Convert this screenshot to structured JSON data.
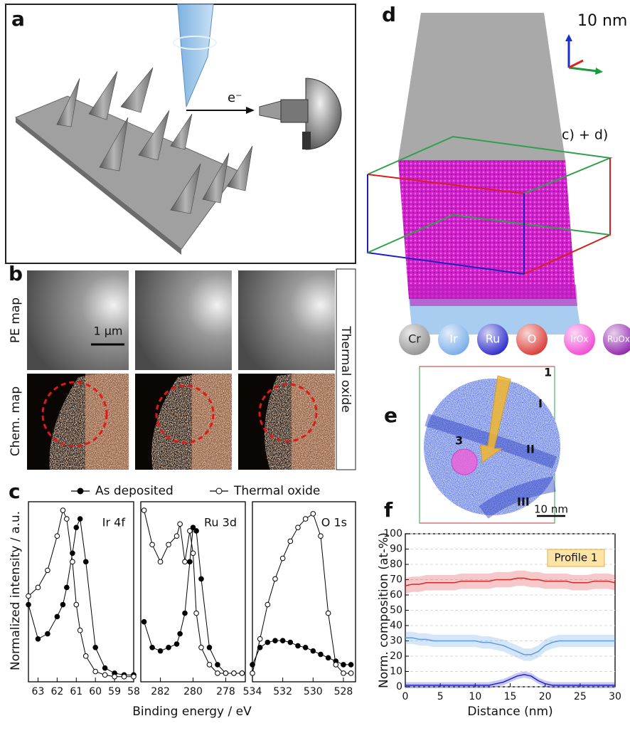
{
  "panel_labels": [
    "a",
    "b",
    "c",
    "d",
    "e",
    "f"
  ],
  "panel_a": {
    "electron_label": "e⁻"
  },
  "panel_b": {
    "row_labels": [
      "PE map",
      "Chem. map"
    ],
    "scale_bar": "1 µm",
    "side_label": "Thermal oxide"
  },
  "panel_c": {
    "legend": [
      {
        "label": "As deposited",
        "marker": "filled"
      },
      {
        "label": "Thermal oxide",
        "marker": "open"
      }
    ],
    "ylabel": "Normalized intensity / a.u.",
    "xlabel": "Binding energy / eV"
  },
  "panel_d": {
    "scale": "10 nm",
    "box_label": "c) + d)",
    "legend": [
      {
        "label": "Cr",
        "color": "#8c8c8c"
      },
      {
        "label": "Ir",
        "color": "#6fa8e8"
      },
      {
        "label": "Ru",
        "color": "#1f1fc8"
      },
      {
        "label": "O",
        "color": "#d8302a"
      },
      {
        "label": "IrOx",
        "color": "#f040d0"
      },
      {
        "label": "RuOx",
        "color": "#8a18a8"
      }
    ]
  },
  "panel_e": {
    "labels": [
      "1",
      "I",
      "II",
      "III",
      "3"
    ],
    "scale": "10 nm"
  },
  "chart_data": [
    {
      "type": "line",
      "label": "Ir 4f",
      "xlim": [
        63.5,
        58
      ],
      "xticks": [
        63,
        62,
        61,
        60,
        59,
        58
      ],
      "ylim": [
        0,
        1.05
      ],
      "x": [
        63.5,
        63,
        62.5,
        62,
        61.7,
        61.5,
        61.2,
        61,
        60.8,
        60.5,
        60,
        59.5,
        59,
        58.5,
        58
      ],
      "series": [
        {
          "marker": "filled",
          "color": "#000000",
          "values": [
            0.45,
            0.25,
            0.28,
            0.38,
            0.45,
            0.55,
            0.75,
            0.9,
            0.95,
            0.7,
            0.2,
            0.08,
            0.05,
            0.04,
            0.04
          ]
        },
        {
          "marker": "open",
          "color": "#000000",
          "values": [
            0.5,
            0.55,
            0.65,
            0.85,
            1.0,
            0.95,
            0.7,
            0.45,
            0.3,
            0.15,
            0.06,
            0.04,
            0.03,
            0.03,
            0.03
          ]
        }
      ]
    },
    {
      "type": "line",
      "label": "Ru 3d",
      "xlim": [
        283.2,
        276.8
      ],
      "xticks": [
        282,
        280,
        278
      ],
      "ylim": [
        0,
        1.05
      ],
      "x": [
        283,
        282.5,
        282,
        281.5,
        281,
        280.8,
        280.5,
        280.2,
        280,
        279.8,
        279.5,
        279,
        278.5,
        278,
        277.5,
        277
      ],
      "series": [
        {
          "marker": "filled",
          "color": "#000000",
          "values": [
            0.35,
            0.2,
            0.18,
            0.2,
            0.22,
            0.28,
            0.4,
            0.7,
            0.9,
            0.88,
            0.6,
            0.2,
            0.1,
            0.05,
            0.05,
            0.05
          ]
        },
        {
          "marker": "open",
          "color": "#000000",
          "values": [
            1.0,
            0.8,
            0.7,
            0.8,
            0.85,
            0.92,
            0.7,
            0.88,
            0.75,
            0.4,
            0.2,
            0.1,
            0.05,
            0.05,
            0.05,
            0.05
          ]
        }
      ]
    },
    {
      "type": "line",
      "label": "O 1s",
      "xlim": [
        534,
        527.2
      ],
      "xticks": [
        534,
        532,
        530,
        528
      ],
      "ylim": [
        0,
        1.05
      ],
      "x": [
        534,
        533.5,
        533,
        532.5,
        532,
        531.5,
        531,
        530.5,
        530,
        529.5,
        529,
        528.5,
        528,
        527.5
      ],
      "series": [
        {
          "marker": "filled",
          "color": "#000000",
          "values": [
            0.1,
            0.2,
            0.23,
            0.24,
            0.24,
            0.23,
            0.21,
            0.2,
            0.18,
            0.16,
            0.14,
            0.12,
            0.1,
            0.1
          ]
        },
        {
          "marker": "open",
          "color": "#000000",
          "values": [
            0.05,
            0.25,
            0.45,
            0.6,
            0.72,
            0.82,
            0.9,
            0.95,
            0.98,
            0.85,
            0.4,
            0.1,
            0.05,
            0.05
          ]
        }
      ]
    },
    {
      "type": "band-line",
      "annotation": "Profile 1",
      "xlabel": "Distance (nm)",
      "ylabel": "Norm. composition (at-%)",
      "xlim": [
        0,
        30
      ],
      "xticks": [
        0,
        5,
        10,
        15,
        20,
        25,
        30
      ],
      "ylim": [
        0,
        100
      ],
      "yticks": [
        0,
        10,
        20,
        30,
        40,
        50,
        60,
        70,
        80,
        90,
        100
      ],
      "x": [
        0,
        1,
        2,
        3,
        4,
        5,
        6,
        7,
        8,
        9,
        10,
        11,
        12,
        13,
        14,
        15,
        16,
        17,
        18,
        19,
        20,
        21,
        22,
        23,
        24,
        25,
        26,
        27,
        28,
        29,
        30
      ],
      "series": [
        {
          "color": "#d62728",
          "spread": 5,
          "values": [
            66,
            67,
            67,
            68,
            68,
            68,
            68,
            68,
            69,
            69,
            69,
            69,
            69,
            70,
            70,
            70,
            71,
            71,
            70,
            70,
            69,
            69,
            69,
            69,
            68,
            68,
            68,
            69,
            69,
            69,
            68
          ]
        },
        {
          "color": "#5b9be6",
          "spread": 4,
          "values": [
            32,
            32,
            31,
            31,
            30,
            30,
            30,
            30,
            30,
            30,
            30,
            29,
            29,
            28,
            27,
            25,
            23,
            21,
            21,
            23,
            27,
            29,
            30,
            30,
            30,
            30,
            30,
            30,
            30,
            30,
            30
          ]
        },
        {
          "color": "#1f1fc8",
          "spread": 2,
          "values": [
            1,
            1,
            1,
            1,
            1,
            1,
            1,
            1,
            1,
            1,
            1,
            1,
            1,
            2,
            3,
            5,
            7,
            8,
            7,
            4,
            2,
            1,
            1,
            1,
            1,
            1,
            1,
            1,
            1,
            1,
            1
          ]
        }
      ]
    }
  ]
}
